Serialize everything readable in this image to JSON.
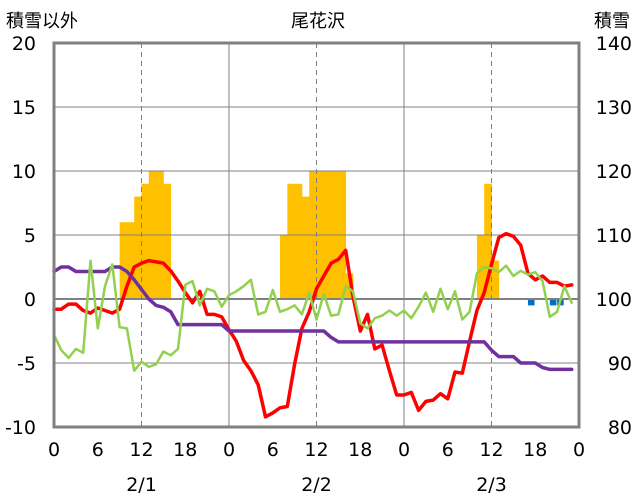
{
  "chart_data": {
    "type": "bar+line",
    "title": "尾花沢",
    "ylabel_left": "積雪以外",
    "ylabel_right": "積雪",
    "ylim_left": [
      -10,
      20
    ],
    "ylim_right": [
      80,
      140
    ],
    "yticks_left": [
      "20",
      "15",
      "10",
      "5",
      "0",
      "-5",
      "-10"
    ],
    "yticks_right": [
      "140",
      "130",
      "120",
      "110",
      "100",
      "90",
      "80"
    ],
    "xlim_hours": [
      0,
      72
    ],
    "xtick_labels": [
      "0",
      "6",
      "12",
      "18",
      "0",
      "6",
      "12",
      "18",
      "0",
      "6",
      "12",
      "18",
      "0"
    ],
    "date_labels": [
      {
        "hour": 12,
        "text": "2/1"
      },
      {
        "hour": 36,
        "text": "2/2"
      },
      {
        "hour": 60,
        "text": "2/3"
      }
    ],
    "colors": {
      "precip": "#ffc000",
      "temperature": "#ff0000",
      "snow_depth": "#7030a0",
      "humidity": "#92d050",
      "wind": "#0070c0",
      "axis": "#808080"
    },
    "series": [
      {
        "key": "precip",
        "type": "bar",
        "axis": "left",
        "values": [
          [
            10,
            6
          ],
          [
            11,
            6
          ],
          [
            12,
            8
          ],
          [
            13,
            9
          ],
          [
            14,
            10
          ],
          [
            15,
            10
          ],
          [
            16,
            9
          ],
          [
            32,
            5
          ],
          [
            33,
            9
          ],
          [
            34,
            9
          ],
          [
            35,
            8
          ],
          [
            36,
            10
          ],
          [
            37,
            10
          ],
          [
            38,
            10
          ],
          [
            39,
            10
          ],
          [
            40,
            10
          ],
          [
            41,
            2
          ],
          [
            59,
            5
          ],
          [
            60,
            9
          ],
          [
            61,
            3
          ]
        ]
      },
      {
        "key": "wind",
        "type": "bar",
        "axis": "left",
        "values": [
          [
            66,
            -0.5
          ],
          [
            69,
            -0.5
          ],
          [
            70,
            -0.5
          ]
        ]
      },
      {
        "key": "temperature",
        "type": "line",
        "axis": "left",
        "points": [
          [
            0,
            -0.8
          ],
          [
            1,
            -0.8
          ],
          [
            2,
            -0.4
          ],
          [
            3,
            -0.4
          ],
          [
            4,
            -0.9
          ],
          [
            5,
            -1.1
          ],
          [
            6,
            -0.7
          ],
          [
            7,
            -0.9
          ],
          [
            8,
            -1.1
          ],
          [
            9,
            -0.8
          ],
          [
            10,
            1
          ],
          [
            11,
            2.5
          ],
          [
            12,
            2.8
          ],
          [
            13,
            3
          ],
          [
            14,
            2.9
          ],
          [
            15,
            2.8
          ],
          [
            16,
            2.2
          ],
          [
            17,
            1.4
          ],
          [
            18,
            0.5
          ],
          [
            19,
            -0.3
          ],
          [
            20,
            0.6
          ],
          [
            21,
            -1.2
          ],
          [
            22,
            -1.2
          ],
          [
            23,
            -1.4
          ],
          [
            24,
            -2.4
          ],
          [
            25,
            -3.3
          ],
          [
            26,
            -4.8
          ],
          [
            27,
            -5.6
          ],
          [
            28,
            -6.7
          ],
          [
            29,
            -9.2
          ],
          [
            30,
            -8.9
          ],
          [
            31,
            -8.5
          ],
          [
            32,
            -8.4
          ],
          [
            33,
            -5.1
          ],
          [
            34,
            -2.3
          ],
          [
            35,
            -1
          ],
          [
            36,
            0.8
          ],
          [
            37,
            1.8
          ],
          [
            38,
            2.8
          ],
          [
            39,
            3.1
          ],
          [
            40,
            3.8
          ],
          [
            41,
            0.2
          ],
          [
            42,
            -2.5
          ],
          [
            43,
            -1.2
          ],
          [
            44,
            -3.9
          ],
          [
            45,
            -3.6
          ],
          [
            46,
            -5.6
          ],
          [
            47,
            -7.5
          ],
          [
            48,
            -7.5
          ],
          [
            49,
            -7.3
          ],
          [
            50,
            -8.7
          ],
          [
            51,
            -8
          ],
          [
            52,
            -7.9
          ],
          [
            53,
            -7.4
          ],
          [
            54,
            -7.8
          ],
          [
            55,
            -5.7
          ],
          [
            56,
            -5.8
          ],
          [
            57,
            -3.3
          ],
          [
            58,
            -0.9
          ],
          [
            59,
            0.5
          ],
          [
            60,
            2.7
          ],
          [
            61,
            4.8
          ],
          [
            62,
            5.1
          ],
          [
            63,
            4.9
          ],
          [
            64,
            4.2
          ],
          [
            65,
            2
          ],
          [
            66,
            1.5
          ],
          [
            67,
            1.8
          ],
          [
            68,
            1.3
          ],
          [
            69,
            1.3
          ],
          [
            70,
            1.0
          ],
          [
            71,
            1.1
          ]
        ]
      },
      {
        "key": "snow_depth",
        "type": "line",
        "axis": "right",
        "points": [
          [
            0,
            104.3
          ],
          [
            1,
            105
          ],
          [
            2,
            105
          ],
          [
            3,
            104.3
          ],
          [
            4,
            104.3
          ],
          [
            5,
            104.3
          ],
          [
            6,
            104.3
          ],
          [
            7,
            104.3
          ],
          [
            8,
            105
          ],
          [
            9,
            105
          ],
          [
            10,
            104.3
          ],
          [
            11,
            103
          ],
          [
            12,
            101.5
          ],
          [
            13,
            100
          ],
          [
            14,
            99
          ],
          [
            15,
            98.7
          ],
          [
            16,
            98
          ],
          [
            17,
            96
          ],
          [
            18,
            96
          ],
          [
            19,
            96
          ],
          [
            20,
            96
          ],
          [
            21,
            96
          ],
          [
            22,
            96
          ],
          [
            23,
            96
          ],
          [
            24,
            95
          ],
          [
            25,
            95
          ],
          [
            26,
            95
          ],
          [
            27,
            95
          ],
          [
            28,
            95
          ],
          [
            29,
            95
          ],
          [
            30,
            95
          ],
          [
            31,
            95
          ],
          [
            32,
            95
          ],
          [
            33,
            95
          ],
          [
            34,
            95
          ],
          [
            35,
            95
          ],
          [
            36,
            95
          ],
          [
            37,
            95
          ],
          [
            38,
            94
          ],
          [
            39,
            93.3
          ],
          [
            40,
            93.3
          ],
          [
            41,
            93.3
          ],
          [
            42,
            93.3
          ],
          [
            43,
            93.3
          ],
          [
            44,
            93.3
          ],
          [
            45,
            93.3
          ],
          [
            46,
            93.3
          ],
          [
            47,
            93.3
          ],
          [
            48,
            93.3
          ],
          [
            49,
            93.3
          ],
          [
            50,
            93.3
          ],
          [
            51,
            93.3
          ],
          [
            52,
            93.3
          ],
          [
            53,
            93.3
          ],
          [
            54,
            93.3
          ],
          [
            55,
            93.3
          ],
          [
            56,
            93.3
          ],
          [
            57,
            93.3
          ],
          [
            58,
            93.3
          ],
          [
            59,
            93.3
          ],
          [
            60,
            92
          ],
          [
            61,
            91
          ],
          [
            62,
            91
          ],
          [
            63,
            91
          ],
          [
            64,
            90
          ],
          [
            65,
            90
          ],
          [
            66,
            90
          ],
          [
            67,
            89.3
          ],
          [
            68,
            89
          ],
          [
            69,
            89
          ],
          [
            70,
            89
          ],
          [
            71,
            89
          ]
        ]
      },
      {
        "key": "humidity",
        "type": "line",
        "axis": "left",
        "points": [
          [
            0,
            -2.8
          ],
          [
            1,
            -4
          ],
          [
            2,
            -4.6
          ],
          [
            3,
            -3.9
          ],
          [
            4,
            -4.2
          ],
          [
            5,
            3
          ],
          [
            6,
            -2.3
          ],
          [
            7,
            1
          ],
          [
            8,
            2.7
          ],
          [
            9,
            -2.2
          ],
          [
            10,
            -2.3
          ],
          [
            11,
            -5.6
          ],
          [
            12,
            -4.9
          ],
          [
            13,
            -5.3
          ],
          [
            14,
            -5.1
          ],
          [
            15,
            -4.1
          ],
          [
            16,
            -4.4
          ],
          [
            17,
            -3.9
          ],
          [
            18,
            1.1
          ],
          [
            19,
            1.4
          ],
          [
            20,
            -0.5
          ],
          [
            21,
            0.8
          ],
          [
            22,
            0.6
          ],
          [
            23,
            -0.6
          ],
          [
            24,
            0.3
          ],
          [
            25,
            0.6
          ],
          [
            26,
            1.0
          ],
          [
            27,
            1.5
          ],
          [
            28,
            -1.2
          ],
          [
            29,
            -1.0
          ],
          [
            30,
            0.7
          ],
          [
            31,
            -1.0
          ],
          [
            32,
            -0.8
          ],
          [
            33,
            -0.5
          ],
          [
            34,
            -1.2
          ],
          [
            35,
            0.5
          ],
          [
            36,
            -1.6
          ],
          [
            37,
            0.4
          ],
          [
            38,
            -1.3
          ],
          [
            39,
            -1.2
          ],
          [
            40,
            1.0
          ],
          [
            41,
            0.6
          ],
          [
            42,
            -1.9
          ],
          [
            43,
            -2.3
          ],
          [
            44,
            -1.5
          ],
          [
            45,
            -1.3
          ],
          [
            46,
            -0.9
          ],
          [
            47,
            -1.3
          ],
          [
            48,
            -0.9
          ],
          [
            49,
            -1.5
          ],
          [
            50,
            -0.6
          ],
          [
            51,
            0.5
          ],
          [
            52,
            -1.0
          ],
          [
            53,
            0.8
          ],
          [
            54,
            -0.8
          ],
          [
            55,
            0.6
          ],
          [
            56,
            -1.6
          ],
          [
            57,
            -1.0
          ],
          [
            58,
            2.0
          ],
          [
            59,
            2.5
          ],
          [
            60,
            2.4
          ],
          [
            61,
            2.1
          ],
          [
            62,
            2.6
          ],
          [
            63,
            1.8
          ],
          [
            64,
            2.2
          ],
          [
            65,
            1.9
          ],
          [
            66,
            2.1
          ],
          [
            67,
            1.4
          ],
          [
            68,
            -1.4
          ],
          [
            69,
            -1.0
          ],
          [
            70,
            1.0
          ],
          [
            71,
            -0.3
          ]
        ]
      }
    ]
  }
}
